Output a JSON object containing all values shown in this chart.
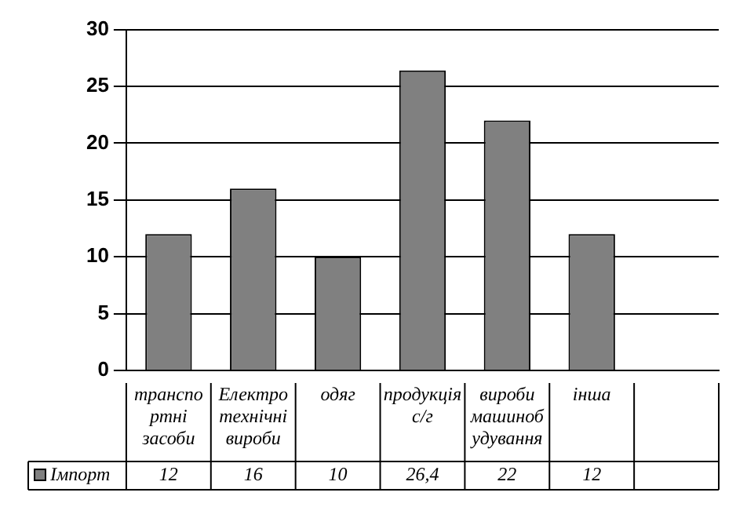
{
  "chart_data": {
    "type": "bar",
    "categories": [
      "транспортні засоби",
      "Електротехнічні вироби",
      "одяг",
      "продукція с/г",
      "вироби машинобудування",
      "інша",
      null
    ],
    "series": [
      {
        "name": "Імпорт",
        "color": "#808080",
        "values": [
          12,
          16,
          10,
          26.4,
          22,
          12,
          null
        ],
        "value_labels": [
          "12",
          "16",
          "10",
          "26,4",
          "22",
          "12",
          null
        ]
      }
    ],
    "ylim": [
      0,
      30
    ],
    "yticks": [
      0,
      5,
      10,
      15,
      20,
      25,
      30
    ],
    "grid": "y",
    "legend": "bottom"
  }
}
